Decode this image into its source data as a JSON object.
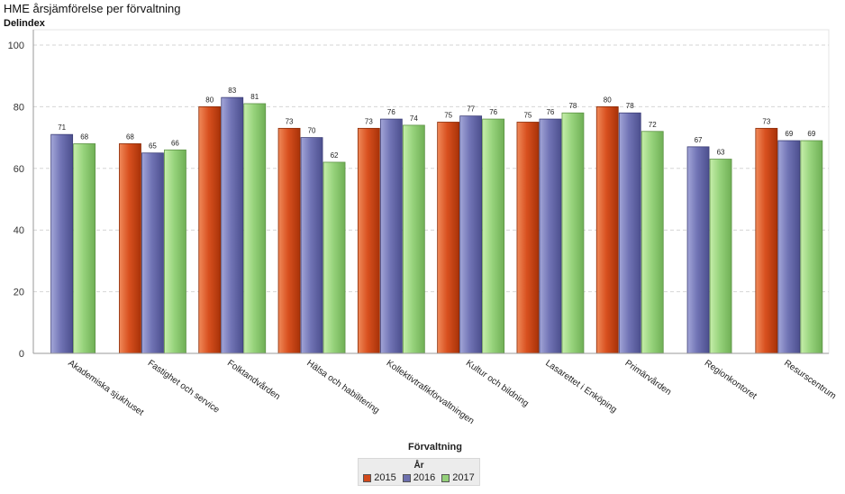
{
  "chart_data": {
    "type": "bar",
    "title": "HME årsjämförelse per förvaltning",
    "ylabel": "Delindex",
    "xlabel": "Förvaltning",
    "ylim": [
      0,
      100
    ],
    "yticks": [
      0,
      20,
      40,
      60,
      80,
      100
    ],
    "grid": true,
    "legend_title": "År",
    "legend_position": "bottom-center",
    "categories": [
      "Akademiska sjukhuset",
      "Fastighet och service",
      "Folktandvården",
      "Hälsa och habilitering",
      "Kollektivtrafikförvaltningen",
      "Kultur och bildning",
      "Lasarettet i Enköping",
      "Primärvården",
      "Regionkontoret",
      "Resurscentrum"
    ],
    "series": [
      {
        "name": "2015",
        "color": "#d2491b",
        "values": [
          null,
          68,
          80,
          73,
          73,
          75,
          75,
          80,
          null,
          73
        ]
      },
      {
        "name": "2016",
        "color": "#6c6fad",
        "values": [
          71,
          65,
          83,
          70,
          76,
          77,
          76,
          78,
          67,
          69
        ]
      },
      {
        "name": "2017",
        "color": "#94d07a",
        "values": [
          68,
          66,
          81,
          62,
          74,
          76,
          78,
          72,
          63,
          69
        ]
      }
    ]
  }
}
